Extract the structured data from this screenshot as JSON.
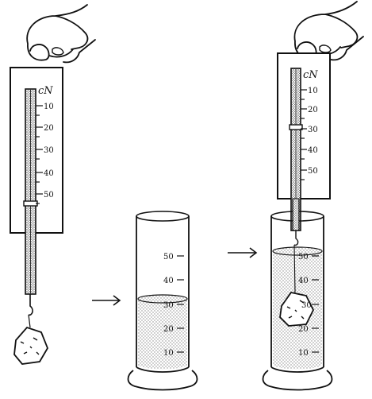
{
  "left_scale": {
    "unit": "cN",
    "ticks": [
      "10",
      "20",
      "30",
      "40",
      "50"
    ]
  },
  "middle_cylinder": {
    "ticks": [
      "50",
      "40",
      "30",
      "20",
      "10"
    ]
  },
  "right_scale": {
    "unit": "cN",
    "ticks": [
      "10",
      "20",
      "30",
      "40",
      "50"
    ]
  },
  "right_cylinder": {
    "ticks": [
      "50",
      "40",
      "30",
      "20",
      "10"
    ]
  },
  "arrows": [
    "arrow-1",
    "arrow-2"
  ],
  "colors": {
    "ink": "#111111",
    "paper": "#ffffff",
    "stipple": "#9a9a9a"
  }
}
